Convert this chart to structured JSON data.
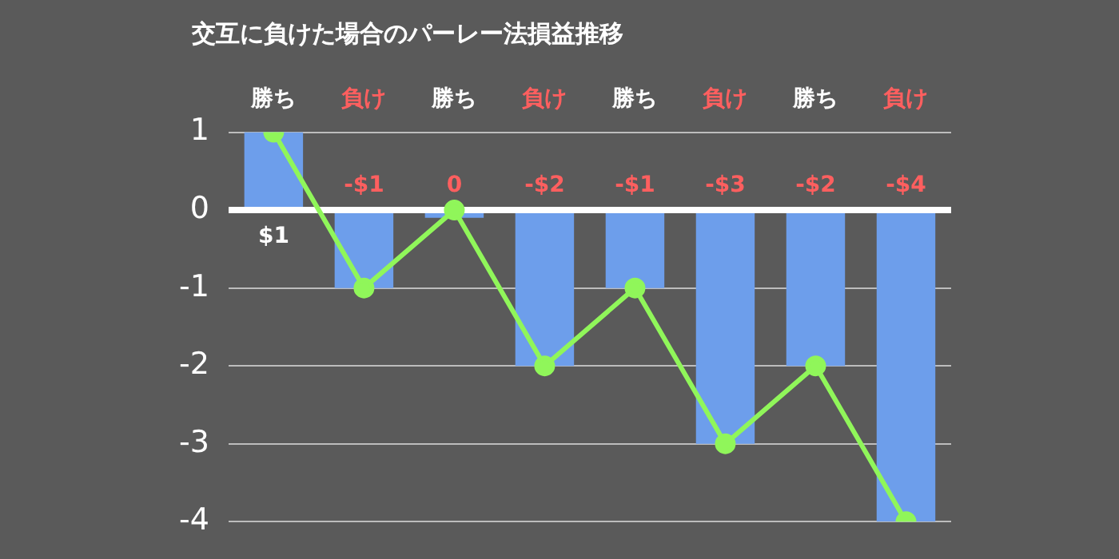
{
  "chart_data": {
    "type": "bar",
    "title": "交互に負けた場合のパーレー法損益推移",
    "categories": [
      "勝ち",
      "負け",
      "勝ち",
      "負け",
      "勝ち",
      "負け",
      "勝ち",
      "負け"
    ],
    "series": [
      {
        "color": "#6d9eeb",
        "values": [
          1,
          -1,
          -0.1,
          -2,
          -1,
          -3,
          -2,
          -4
        ],
        "value_labels": [
          "$1",
          "-$1",
          "0",
          "-$2",
          "-$1",
          "-$3",
          "-$2",
          "-$4"
        ]
      },
      {
        "type": "line",
        "color": "#90f65a",
        "values": [
          1,
          -1,
          0,
          -2,
          -1,
          -3,
          -2,
          -4
        ]
      }
    ],
    "ylim": [
      -4,
      1
    ],
    "yticks": [
      -4,
      -3,
      -2,
      -1,
      0,
      1
    ],
    "grid": "y",
    "legend": false,
    "marker": "circle"
  }
}
